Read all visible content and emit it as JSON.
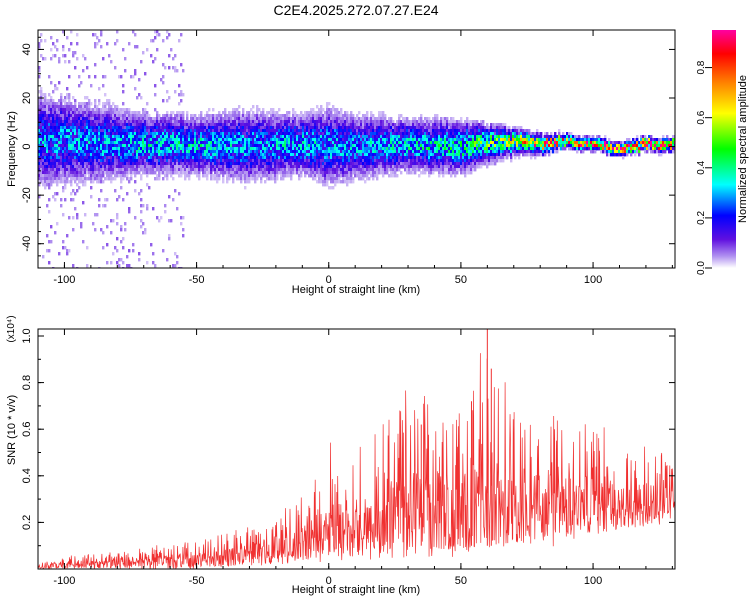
{
  "title": "C2E4.2025.272.07.27.E24",
  "chart_data": [
    {
      "type": "heatmap",
      "name": "spectrogram",
      "xlabel": "Height of straight line (km)",
      "ylabel": "Frequency (Hz)",
      "xlim": [
        -110,
        131
      ],
      "ylim": [
        -50,
        48
      ],
      "xticks": [
        -100,
        -50,
        0,
        50,
        100
      ],
      "yticks": [
        -40,
        -20,
        0,
        20,
        40
      ],
      "colorbar": {
        "label": "Normalized spectral amplitude",
        "range": [
          0,
          0.95
        ],
        "ticks": [
          "0.0",
          "0.2",
          "0.4",
          "0.6",
          "0.8"
        ],
        "tick_values": [
          0,
          0.2,
          0.4,
          0.6,
          0.8
        ],
        "colormap": [
          "#ffffff",
          "#b090f0",
          "#6010e0",
          "#0000ff",
          "#00ffff",
          "#00ff00",
          "#ffff00",
          "#ff8000",
          "#ff0000",
          "#ff00a0"
        ]
      },
      "ridge": {
        "description": "Energy concentrated near 0 Hz",
        "x": [
          -110,
          -90,
          -70,
          -50,
          -30,
          -10,
          0,
          10,
          30,
          50,
          70,
          80,
          90,
          100,
          110,
          120,
          131
        ],
        "center_hz": [
          3,
          2,
          1,
          1,
          0,
          1,
          0,
          0,
          1,
          0,
          2,
          1,
          2,
          1,
          -1,
          1,
          1
        ],
        "spread_hz": [
          14,
          12,
          9,
          9,
          11,
          9,
          12,
          10,
          8,
          8,
          4,
          3,
          2,
          2,
          2,
          2,
          2
        ],
        "peak_amp": [
          0.3,
          0.3,
          0.35,
          0.35,
          0.3,
          0.35,
          0.3,
          0.3,
          0.35,
          0.4,
          0.6,
          0.75,
          0.85,
          0.9,
          0.9,
          0.9,
          0.9
        ]
      }
    },
    {
      "type": "line",
      "name": "snr",
      "xlabel": "Height of straight line (km)",
      "ylabel": "SNR (10 * v/v)",
      "scale_label": "(x10⁴)",
      "xlim": [
        -110,
        131
      ],
      "ylim": [
        0,
        1.03
      ],
      "xticks": [
        -100,
        -50,
        0,
        50,
        100
      ],
      "yticks": [
        "0.2",
        "0.4",
        "0.6",
        "0.8",
        "1.0"
      ],
      "ytick_values": [
        0.2,
        0.4,
        0.6,
        0.8,
        1.0
      ],
      "color": "#f03030",
      "envelope": {
        "x": [
          -110,
          -90,
          -70,
          -50,
          -30,
          -10,
          0,
          10,
          30,
          50,
          60,
          70,
          90,
          110,
          131
        ],
        "upper": [
          0.04,
          0.07,
          0.1,
          0.13,
          0.2,
          0.35,
          0.55,
          0.52,
          0.8,
          0.75,
          1.03,
          0.7,
          0.75,
          0.55,
          0.5
        ],
        "lower": [
          0.0,
          0.0,
          0.0,
          0.0,
          0.01,
          0.02,
          0.03,
          0.03,
          0.05,
          0.05,
          0.05,
          0.08,
          0.1,
          0.15,
          0.2
        ]
      }
    }
  ]
}
